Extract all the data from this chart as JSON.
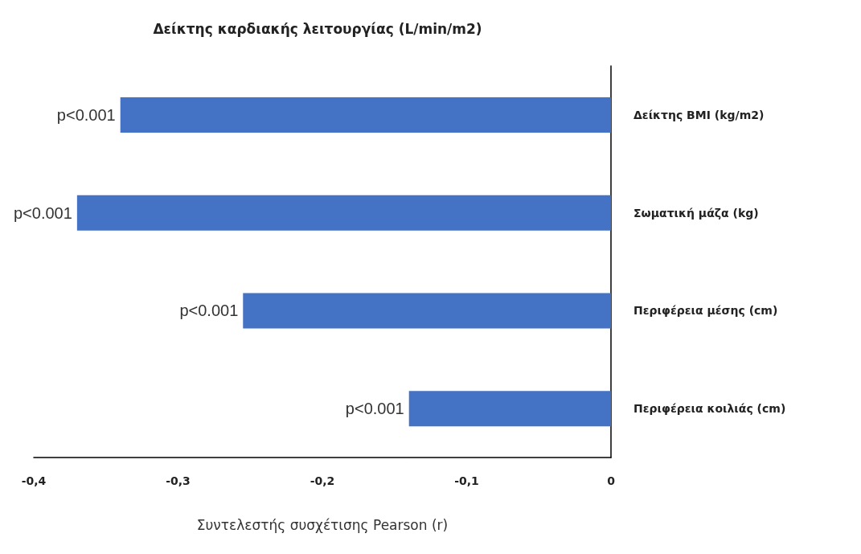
{
  "chart_data": {
    "type": "bar",
    "orientation": "horizontal",
    "title": "Δείκτης καρδιακής λειτουργίας (L/min/m2)",
    "xlabel": "Συντελεστής συσχέτισης Pearson (r)",
    "categories": [
      "Δείκτης BMI (kg/m2)",
      "Σωματική μάζα (kg)",
      "Περιφέρεια μέσης (cm)",
      "Περιφέρεια κοιλιάς (cm)"
    ],
    "values": [
      -0.34,
      -0.37,
      -0.255,
      -0.14
    ],
    "value_labels": [
      "p<0.001",
      "p<0.001",
      "p<0.001",
      "p<0.001"
    ],
    "color": "#4472c4",
    "xlim": [
      -0.4,
      0
    ],
    "xticks": [
      {
        "value": -0.4,
        "label": "-0,4"
      },
      {
        "value": -0.3,
        "label": "-0,3"
      },
      {
        "value": -0.2,
        "label": "-0,2"
      },
      {
        "value": -0.1,
        "label": "-0,1"
      },
      0
    ],
    "grid": false
  }
}
